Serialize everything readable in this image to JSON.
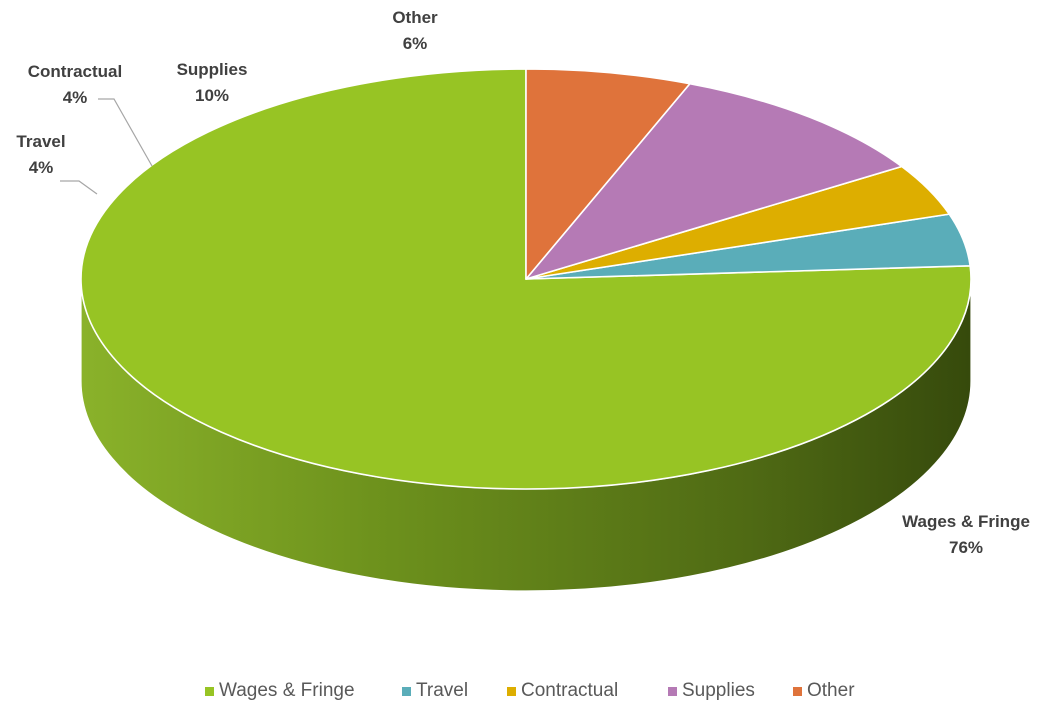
{
  "chart_data": {
    "type": "pie",
    "title": "",
    "categories": [
      "Wages & Fringe",
      "Travel",
      "Contractual",
      "Supplies",
      "Other"
    ],
    "values": [
      76,
      4,
      4,
      10,
      6
    ],
    "labels": [
      "76%",
      "4%",
      "4%",
      "10%",
      "6%"
    ],
    "colors": [
      "#97c424",
      "#5aadb9",
      "#ddae00",
      "#b57ab5",
      "#df733b"
    ],
    "legend": {
      "position": "bottom"
    },
    "style": "3d"
  }
}
